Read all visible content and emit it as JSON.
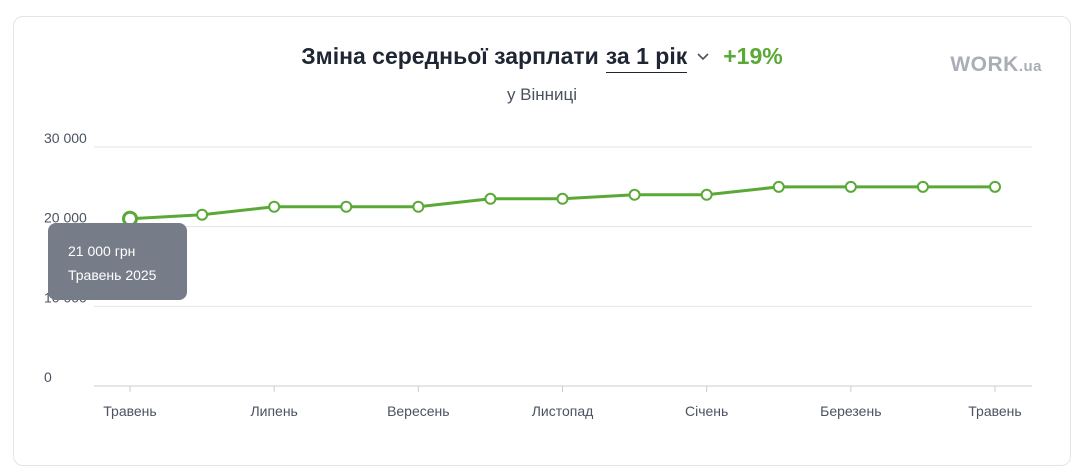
{
  "header": {
    "title": "Зміна середньої зарплати",
    "period": "за 1 рік",
    "change": "+19%",
    "subtitle": "у Вінниці",
    "logo_main": "WORK",
    "logo_suffix": ".ua"
  },
  "tooltip": {
    "value": "21 000 грн",
    "date": "Травень 2025"
  },
  "colors": {
    "line": "#5aa936",
    "change": "#5aa936",
    "tooltip_bg": "#777c89",
    "grid": "#e3e5e8"
  },
  "chart_data": {
    "type": "line",
    "title": "Зміна середньої зарплати за 1 рік",
    "ylim": [
      0,
      30000
    ],
    "yticks": [
      {
        "value": 0,
        "label": "0"
      },
      {
        "value": 10000,
        "label": "10 000"
      },
      {
        "value": 20000,
        "label": "20 000"
      },
      {
        "value": 30000,
        "label": "30 000"
      }
    ],
    "x_labels": [
      "Травень",
      "",
      "Липень",
      "",
      "Вересень",
      "",
      "Листопад",
      "",
      "Січень",
      "",
      "Березень",
      "",
      "Травень"
    ],
    "series": [
      {
        "values": [
          21000,
          21500,
          22500,
          22500,
          22500,
          23500,
          23500,
          24000,
          24000,
          25000,
          25000,
          25000,
          25000
        ]
      }
    ],
    "grid": true,
    "highlighted_index": 0
  }
}
